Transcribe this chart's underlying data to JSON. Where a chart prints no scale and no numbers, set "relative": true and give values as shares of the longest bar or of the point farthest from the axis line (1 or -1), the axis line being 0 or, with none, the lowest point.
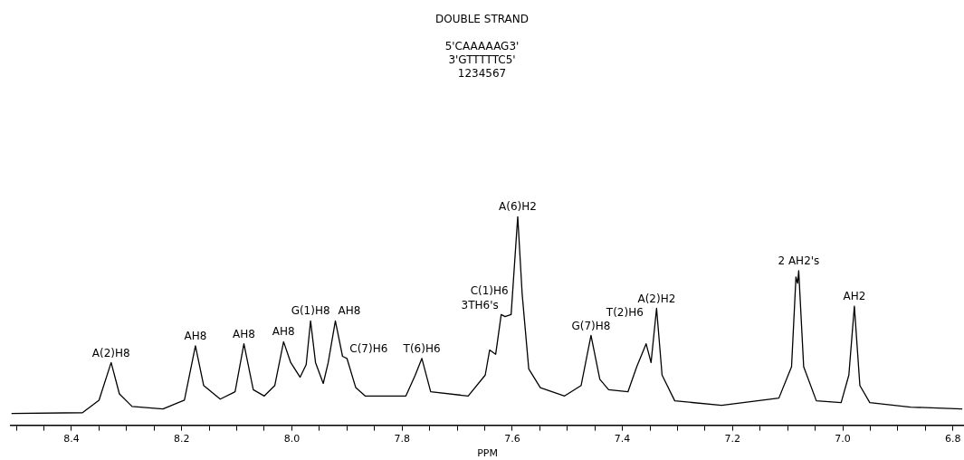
{
  "chart_data": {
    "type": "line",
    "title": "DOUBLE STRAND",
    "subtitle": "5'CAAAAAG3'\n3'GTTTTTC5'\n1234567",
    "xlabel": "PPM",
    "relative": true,
    "grid": false,
    "legend": false,
    "marker": "none",
    "line_style": "solid",
    "tick_labels": "x",
    "xlim": [
      8.51,
      6.78
    ],
    "xticks": [
      {
        "value": 8.5,
        "label": null
      },
      {
        "value": 8.45,
        "label": null
      },
      8.4,
      {
        "value": 8.35,
        "label": null
      },
      {
        "value": 8.3,
        "label": null
      },
      {
        "value": 8.25,
        "label": null
      },
      8.2,
      {
        "value": 8.15,
        "label": null
      },
      {
        "value": 8.1,
        "label": null
      },
      {
        "value": 8.05,
        "label": null
      },
      {
        "value": 8,
        "label": "8.0"
      },
      {
        "value": 7.95,
        "label": null
      },
      {
        "value": 7.9,
        "label": null
      },
      {
        "value": 7.85,
        "label": null
      },
      7.8,
      {
        "value": 7.75,
        "label": null
      },
      {
        "value": 7.7,
        "label": null
      },
      {
        "value": 7.65,
        "label": null
      },
      7.6,
      {
        "value": 7.55,
        "label": null
      },
      {
        "value": 7.5,
        "label": null
      },
      {
        "value": 7.45,
        "label": null
      },
      7.4,
      {
        "value": 7.35,
        "label": null
      },
      {
        "value": 7.3,
        "label": null
      },
      {
        "value": 7.25,
        "label": null
      },
      7.2,
      {
        "value": 7.15,
        "label": null
      },
      {
        "value": 7.1,
        "label": null
      },
      {
        "value": 7.05,
        "label": null
      },
      {
        "value": 7,
        "label": "7.0"
      },
      {
        "value": 6.95,
        "label": null
      },
      {
        "value": 6.9,
        "label": null
      },
      {
        "value": 6.85,
        "label": null
      },
      6.8
    ],
    "series": [
      {
        "color": "#000000",
        "x": [
          8.508,
          8.38,
          8.35,
          8.328,
          8.313,
          8.29,
          8.234,
          8.195,
          8.175,
          8.16,
          8.13,
          8.103,
          8.087,
          8.07,
          8.05,
          8.031,
          8.015,
          8.002,
          7.985,
          7.974,
          7.966,
          7.957,
          7.943,
          7.934,
          7.921,
          7.908,
          7.9,
          7.884,
          7.867,
          7.793,
          7.776,
          7.764,
          7.748,
          7.68,
          7.649,
          7.641,
          7.63,
          7.62,
          7.613,
          7.602,
          7.59,
          7.582,
          7.57,
          7.549,
          7.505,
          7.475,
          7.457,
          7.441,
          7.425,
          7.39,
          7.374,
          7.357,
          7.348,
          7.338,
          7.328,
          7.305,
          7.22,
          7.116,
          7.093,
          7.085,
          7.082,
          7.08,
          7.071,
          7.048,
          7.003,
          6.989,
          6.979,
          6.969,
          6.951,
          6.877,
          6.784
        ],
        "values": [
          0.056,
          0.06,
          0.12,
          0.3,
          0.15,
          0.09,
          0.078,
          0.12,
          0.38,
          0.19,
          0.125,
          0.16,
          0.39,
          0.17,
          0.14,
          0.19,
          0.4,
          0.3,
          0.23,
          0.29,
          0.5,
          0.3,
          0.2,
          0.3,
          0.5,
          0.33,
          0.32,
          0.18,
          0.14,
          0.14,
          0.24,
          0.32,
          0.16,
          0.14,
          0.24,
          0.36,
          0.34,
          0.53,
          0.52,
          0.53,
          1.0,
          0.63,
          0.27,
          0.18,
          0.14,
          0.19,
          0.43,
          0.22,
          0.17,
          0.16,
          0.28,
          0.39,
          0.3,
          0.56,
          0.24,
          0.117,
          0.095,
          0.13,
          0.28,
          0.71,
          0.68,
          0.74,
          0.28,
          0.117,
          0.108,
          0.24,
          0.57,
          0.19,
          0.108,
          0.087,
          0.078
        ]
      }
    ],
    "annotations": [
      {
        "text": "A(2)H8",
        "x": 8.328,
        "y": 0.3
      },
      {
        "text": "AH8",
        "x": 8.175,
        "y": 0.38
      },
      {
        "text": "AH8",
        "x": 8.087,
        "y": 0.39
      },
      {
        "text": "AH8",
        "x": 8.015,
        "y": 0.4
      },
      {
        "text": "G(1)H8",
        "x": 7.966,
        "y": 0.5
      },
      {
        "text": "AH8",
        "x": 7.921,
        "y": 0.5
      },
      {
        "text": "C(7)H6",
        "x": 7.9,
        "y": 0.32
      },
      {
        "text": "T(6)H6",
        "x": 7.764,
        "y": 0.32
      },
      {
        "text": "3TH6's",
        "x": 7.62,
        "y": 0.53
      },
      {
        "text": "C(1)H6",
        "x": 7.602,
        "y": 0.53
      },
      {
        "text": "A(6)H2",
        "x": 7.59,
        "y": 1.0
      },
      {
        "text": "G(7)H8",
        "x": 7.457,
        "y": 0.43
      },
      {
        "text": "T(2)H6",
        "x": 7.357,
        "y": 0.39
      },
      {
        "text": "A(2)H2",
        "x": 7.338,
        "y": 0.56
      },
      {
        "text": "2 AH2's",
        "x": 7.08,
        "y": 0.74
      },
      {
        "text": "AH2",
        "x": 6.979,
        "y": 0.57
      }
    ]
  }
}
